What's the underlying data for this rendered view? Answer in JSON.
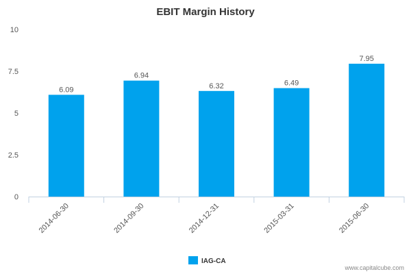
{
  "chart_data": {
    "type": "bar",
    "title": "EBIT Margin History",
    "xlabel": "",
    "ylabel": "",
    "categories": [
      "2014-06-30",
      "2014-09-30",
      "2014-12-31",
      "2015-03-31",
      "2015-06-30"
    ],
    "series": [
      {
        "name": "IAG-CA",
        "values": [
          6.09,
          6.94,
          6.32,
          6.49,
          7.95
        ]
      }
    ],
    "data_labels": [
      "6.09",
      "6.94",
      "6.32",
      "6.49",
      "7.95"
    ],
    "ylim": [
      0,
      10
    ],
    "yticks": [
      0,
      2.5,
      5,
      7.5,
      10
    ],
    "ytick_labels": [
      "0",
      "2.5",
      "5",
      "7.5",
      "10"
    ],
    "grid": false,
    "legend_position": "bottom-center",
    "bar_color": "#00a2ed"
  },
  "credit": "www.capitalcube.com"
}
